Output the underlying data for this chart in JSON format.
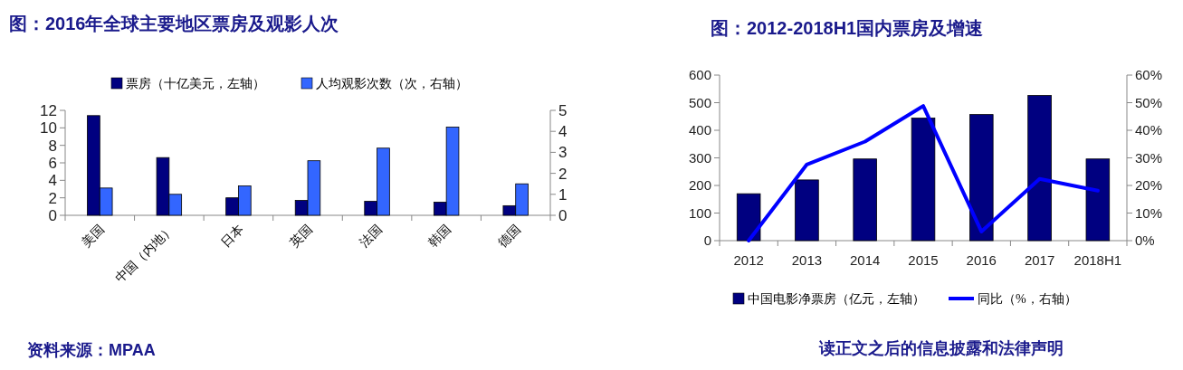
{
  "chart_data": [
    {
      "type": "bar",
      "title": "图：2016年全球主要地区票房及观影人次",
      "categories": [
        "美国",
        "中国（内地）",
        "日本",
        "英国",
        "法国",
        "韩国",
        "德国"
      ],
      "series": [
        {
          "name": "票房（十亿美元，左轴）",
          "color": "#000080",
          "values": [
            11.4,
            6.6,
            2.0,
            1.7,
            1.6,
            1.5,
            1.1
          ]
        },
        {
          "name": "人均观影次数（次，右轴）",
          "color": "#3366ff",
          "axis": "y2",
          "values": [
            1.3,
            1.0,
            1.4,
            2.6,
            3.2,
            4.2,
            1.5
          ]
        }
      ],
      "ylim": [
        0,
        12
      ],
      "yticks": [
        0,
        2,
        4,
        6,
        8,
        10,
        12
      ],
      "y2lim": [
        0,
        5
      ],
      "y2ticks": [
        0,
        1,
        2,
        3,
        4,
        5
      ],
      "legend": "top",
      "annotations": [
        "资料来源：MPAA"
      ]
    },
    {
      "type": "bar",
      "title": "图：2012-2018H1国内票房及增速",
      "categories": [
        "2012",
        "2013",
        "2014",
        "2015",
        "2016",
        "2017",
        "2018H1"
      ],
      "series": [
        {
          "name": "中国电影净票房（亿元，左轴）",
          "color": "#000080",
          "values": [
            170,
            220,
            296,
            444,
            457,
            526,
            296
          ]
        },
        {
          "name": "同比（%，右轴）",
          "color": "#0000ff",
          "type": "line",
          "axis": "y2",
          "values": [
            0,
            27.6,
            35.9,
            48.8,
            3.3,
            22.4,
            18.1
          ]
        }
      ],
      "ylim": [
        0,
        600
      ],
      "yticks": [
        0,
        100,
        200,
        300,
        400,
        500,
        600
      ],
      "y2lim": [
        0,
        60
      ],
      "y2ticks": [
        {
          "value": 0,
          "label": "0%"
        },
        {
          "value": 10,
          "label": "10%"
        },
        {
          "value": 20,
          "label": "20%"
        },
        {
          "value": 30,
          "label": "30%"
        },
        {
          "value": 40,
          "label": "40%"
        },
        {
          "value": 50,
          "label": "50%"
        },
        {
          "value": 60,
          "label": "60%"
        }
      ],
      "legend": "bottom",
      "annotations": [
        "读正文之后的信息披露和法律声明"
      ]
    }
  ]
}
